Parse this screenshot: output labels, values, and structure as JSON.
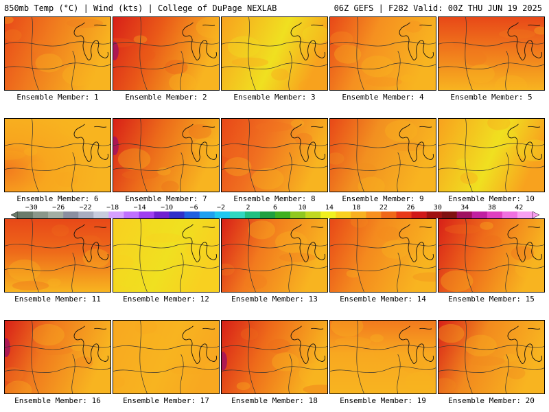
{
  "header": {
    "left_title": "850mb Temp (°C) | Wind (kts) | College of DuPage NEXLAB",
    "right_title": "06Z GEFS | F282 Valid: 00Z THU JUN 19 2025"
  },
  "panel_label_prefix": "Ensemble Member: ",
  "members": [
    {
      "label": "Ensemble Member: 1",
      "base": "#f07a1e",
      "hot": "west",
      "intensity": 0.8
    },
    {
      "label": "Ensemble Member: 2",
      "base": "#ea5a18",
      "hot": "west",
      "intensity": 1.0
    },
    {
      "label": "Ensemble Member: 3",
      "base": "#f8a21e",
      "hot": "none",
      "intensity": 0.2
    },
    {
      "label": "Ensemble Member: 4",
      "base": "#f59020",
      "hot": "west",
      "intensity": 0.6
    },
    {
      "label": "Ensemble Member: 5",
      "base": "#f0781c",
      "hot": "north",
      "intensity": 0.8
    },
    {
      "label": "Ensemble Member: 6",
      "base": "#f8a61e",
      "hot": "sw",
      "intensity": 0.5
    },
    {
      "label": "Ensemble Member: 7",
      "base": "#ec6a1a",
      "hot": "west",
      "intensity": 1.0
    },
    {
      "label": "Ensemble Member: 8",
      "base": "#f07020",
      "hot": "west",
      "intensity": 0.8
    },
    {
      "label": "Ensemble Member: 9",
      "base": "#f29020",
      "hot": "west",
      "intensity": 0.7
    },
    {
      "label": "Ensemble Member: 10",
      "base": "#f8a21e",
      "hot": "none",
      "intensity": 0.2
    },
    {
      "label": "Ensemble Member: 11",
      "base": "#ee6a1a",
      "hot": "north",
      "intensity": 0.8
    },
    {
      "label": "Ensemble Member: 12",
      "base": "#f8d020",
      "hot": "none",
      "intensity": 0.1
    },
    {
      "label": "Ensemble Member: 13",
      "base": "#f27a1e",
      "hot": "west",
      "intensity": 0.9
    },
    {
      "label": "Ensemble Member: 14",
      "base": "#f48a1e",
      "hot": "west",
      "intensity": 0.8
    },
    {
      "label": "Ensemble Member: 15",
      "base": "#ee6a1a",
      "hot": "west",
      "intensity": 0.9
    },
    {
      "label": "Ensemble Member: 16",
      "base": "#f07a1e",
      "hot": "west",
      "intensity": 1.0
    },
    {
      "label": "Ensemble Member: 17",
      "base": "#f8a820",
      "hot": "none",
      "intensity": 0.3
    },
    {
      "label": "Ensemble Member: 18",
      "base": "#ee6a1a",
      "hot": "west",
      "intensity": 1.0
    },
    {
      "label": "Ensemble Member: 19",
      "base": "#f8a820",
      "hot": "north",
      "intensity": 0.4
    },
    {
      "label": "Ensemble Member: 20",
      "base": "#f28a1e",
      "hot": "west",
      "intensity": 0.9
    }
  ],
  "colorbar": {
    "labels": [
      "−30",
      "−26",
      "−22",
      "−18",
      "−14",
      "−10",
      "−6",
      "−2",
      "2",
      "6",
      "10",
      "14",
      "18",
      "22",
      "26",
      "30",
      "34",
      "38",
      "42"
    ],
    "colors": [
      "#6b7b6b",
      "#8a978a",
      "#a3aea3",
      "#8b8fa0",
      "#a9adc0",
      "#c7cbdc",
      "#d6a0ff",
      "#c070ff",
      "#a040f0",
      "#7020d0",
      "#3030c8",
      "#2060e0",
      "#20a0f0",
      "#20c8f0",
      "#30d8c0",
      "#20c080",
      "#20a040",
      "#40b020",
      "#90c820",
      "#c0d820",
      "#f0f020",
      "#f8d020",
      "#f8b020",
      "#f89020",
      "#f06818",
      "#e83818",
      "#d01818",
      "#a01010",
      "#801010",
      "#a01060",
      "#c020a0",
      "#e040c0",
      "#f070e0",
      "#f8a0f0"
    ],
    "unit": "°C"
  },
  "colors": {
    "border": "#000000",
    "contour": "#333333",
    "coast": "#111111"
  }
}
